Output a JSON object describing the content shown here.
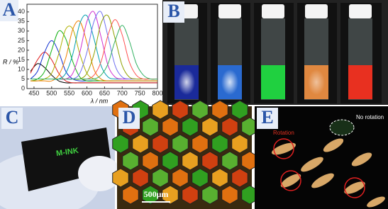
{
  "chart_data": {
    "type": "line",
    "panel_label": "A",
    "y_label": "R / %",
    "x_label": "λ / nm",
    "x": [
      440,
      460,
      480,
      500,
      520,
      540,
      560,
      580,
      600,
      620,
      640,
      660,
      680,
      700,
      720,
      740,
      760,
      780,
      800
    ],
    "xlim": [
      430,
      800
    ],
    "xticks": [
      450,
      500,
      550,
      600,
      650,
      700,
      750,
      800
    ],
    "ylim": [
      0,
      44
    ],
    "yticks": [
      0,
      5,
      10,
      15,
      20,
      25,
      30,
      35,
      40
    ],
    "series": [
      {
        "color": "#000000",
        "values": [
          9,
          13,
          11,
          7,
          4,
          3,
          3,
          3,
          3,
          3,
          3,
          3,
          3,
          3,
          3,
          3,
          3,
          3,
          3
        ]
      },
      {
        "color": "#e02020",
        "values": [
          8,
          15,
          19,
          15,
          8,
          4,
          3,
          3,
          3,
          3,
          3,
          3,
          3,
          3,
          3,
          3,
          3,
          3,
          3
        ]
      },
      {
        "color": "#1030d0",
        "values": [
          5,
          9,
          19,
          25,
          19,
          9,
          5,
          4,
          4,
          4,
          4,
          4,
          4,
          4,
          4,
          4,
          4,
          4,
          4
        ]
      },
      {
        "color": "#10b010",
        "values": [
          4,
          5,
          9,
          20,
          30,
          26,
          14,
          6,
          4,
          4,
          4,
          4,
          4,
          4,
          4,
          4,
          4,
          4,
          4
        ]
      },
      {
        "color": "#b0b000",
        "values": [
          4,
          4,
          5,
          8,
          18,
          31,
          31,
          18,
          8,
          5,
          4,
          4,
          4,
          4,
          4,
          4,
          4,
          4,
          4
        ]
      },
      {
        "color": "#f08000",
        "values": [
          4,
          4,
          4,
          4,
          7,
          16,
          31,
          35,
          24,
          10,
          5,
          4,
          4,
          4,
          4,
          4,
          4,
          4,
          4
        ]
      },
      {
        "color": "#00a0b0",
        "values": [
          5,
          5,
          5,
          5,
          5,
          8,
          18,
          34,
          38,
          26,
          12,
          6,
          5,
          5,
          5,
          5,
          5,
          5,
          5
        ]
      },
      {
        "color": "#d030d0",
        "values": [
          5,
          5,
          5,
          5,
          5,
          5,
          8,
          19,
          35,
          40,
          27,
          12,
          6,
          5,
          5,
          5,
          5,
          5,
          5
        ]
      },
      {
        "color": "#7070f0",
        "values": [
          5,
          5,
          5,
          5,
          5,
          5,
          5,
          8,
          19,
          35,
          40,
          27,
          12,
          6,
          5,
          5,
          5,
          5,
          5
        ]
      },
      {
        "color": "#90a000",
        "values": [
          5,
          5,
          5,
          5,
          5,
          5,
          5,
          5,
          8,
          18,
          34,
          38,
          26,
          12,
          6,
          5,
          5,
          5,
          5
        ]
      },
      {
        "color": "#ff5050",
        "values": [
          5,
          5,
          5,
          5,
          5,
          5,
          5,
          5,
          5,
          7,
          14,
          28,
          36,
          28,
          14,
          7,
          5,
          5,
          5
        ]
      },
      {
        "color": "#30b060",
        "values": [
          5,
          5,
          5,
          5,
          5,
          5,
          5,
          5,
          5,
          5,
          7,
          13,
          25,
          33,
          25,
          13,
          7,
          5,
          5
        ]
      }
    ]
  },
  "panels": {
    "B": {
      "label": "B"
    },
    "C": {
      "label": "C",
      "card_text": "M-INK"
    },
    "D": {
      "label": "D",
      "scale": "500μm"
    },
    "E": {
      "label": "E",
      "rotation": "Rotation",
      "no_rotation": "No rotation"
    }
  }
}
